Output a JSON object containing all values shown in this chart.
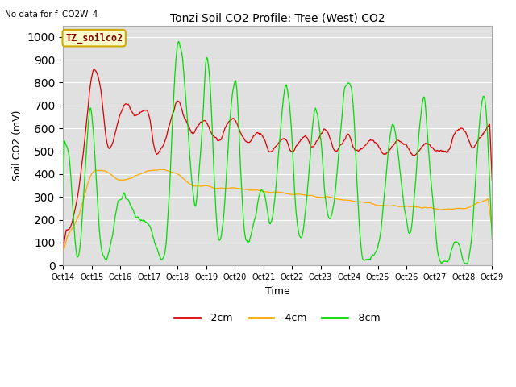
{
  "title": "Tonzi Soil CO2 Profile: Tree (West) CO2",
  "note": "No data for f_CO2W_4",
  "ylabel": "Soil CO2 (mV)",
  "xlabel": "Time",
  "box_label": "TZ_soilco2",
  "legend": [
    "-2cm",
    "-4cm",
    "-8cm"
  ],
  "colors": [
    "#dd0000",
    "#ffaa00",
    "#00dd00"
  ],
  "ylim": [
    0,
    1050
  ],
  "yticks": [
    0,
    100,
    200,
    300,
    400,
    500,
    600,
    700,
    800,
    900,
    1000
  ],
  "xtick_labels": [
    "Oct 14",
    "Oct 15",
    "Oct 16",
    "Oct 17",
    "Oct 18",
    "Oct 19",
    "Oct 20",
    "Oct 21",
    "Oct 22",
    "Oct 23",
    "Oct 24",
    "Oct 25",
    "Oct 26",
    "Oct 27",
    "Oct 28",
    "Oct 29"
  ],
  "bg_color": "#e0e0e0",
  "fig_bg_color": "#ffffff",
  "n_days": 15,
  "n_points": 720
}
